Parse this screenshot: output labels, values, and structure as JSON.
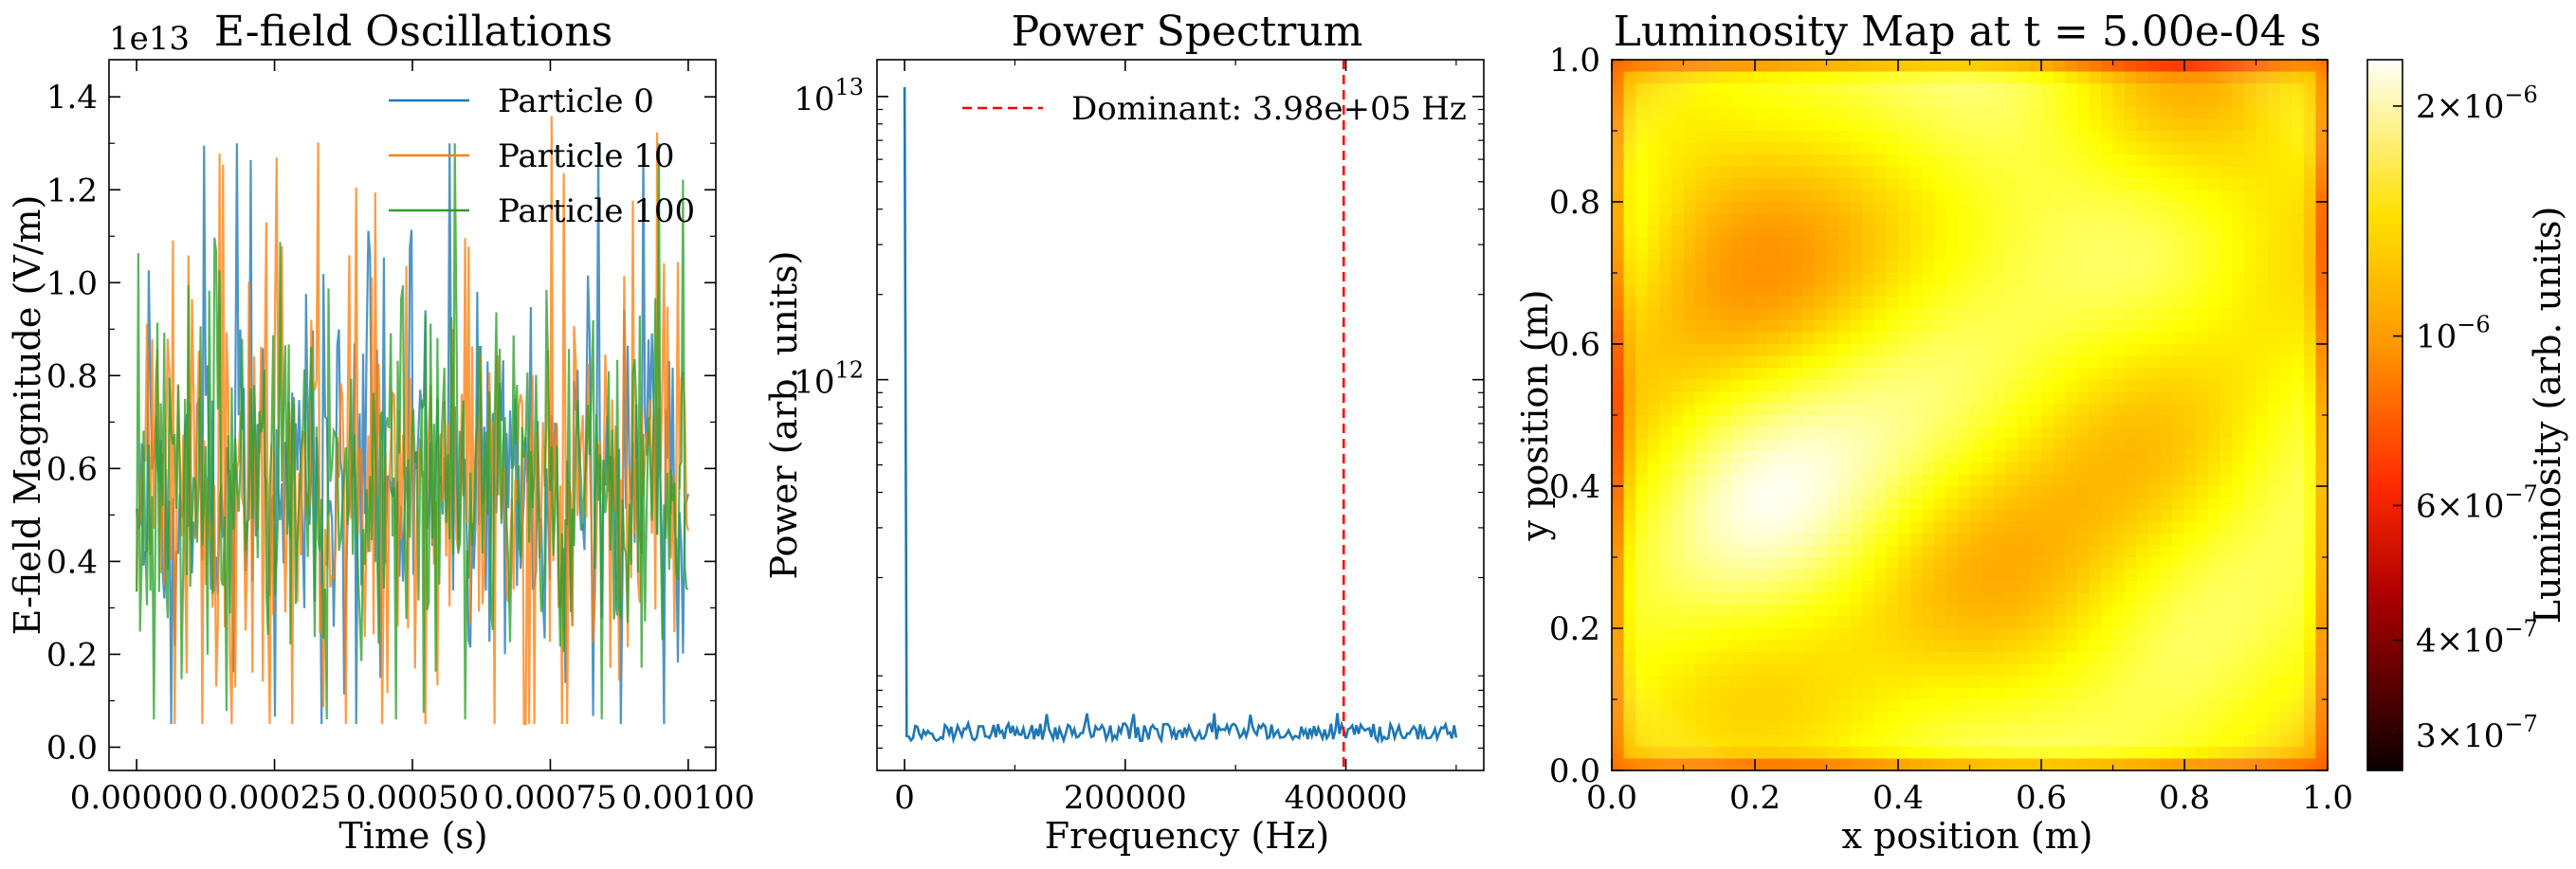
{
  "chart_data": [
    {
      "type": "line",
      "title": "E-field Oscillations",
      "xlabel": "Time (s)",
      "ylabel": "E-field Magnitude (V/m)",
      "offset_text": "1e13",
      "xlim": [
        -5e-05,
        0.00105
      ],
      "ylim": [
        -0.05,
        1.48
      ],
      "x_ticks": [
        "0.00000",
        "0.00025",
        "0.00050",
        "0.00075",
        "0.00100"
      ],
      "x_tick_values": [
        0,
        0.00025,
        0.0005,
        0.00075,
        0.001
      ],
      "y_ticks": [
        "0.0",
        "0.2",
        "0.4",
        "0.6",
        "0.8",
        "1.0",
        "1.2",
        "1.4"
      ],
      "y_tick_values": [
        0,
        0.2,
        0.4,
        0.6,
        0.8,
        1.0,
        1.2,
        1.4
      ],
      "x_range": [
        0,
        0.001
      ],
      "samples": 320,
      "legend_position": "top-right",
      "series": [
        {
          "name": "Particle 0",
          "color": "#1f77b4",
          "mean": 0.57,
          "spread": 0.24,
          "min": 0.05,
          "max": 1.3,
          "seed": 11
        },
        {
          "name": "Particle 10",
          "color": "#ff7f0e",
          "mean": 0.57,
          "spread": 0.25,
          "min": 0.05,
          "max": 1.4,
          "seed": 23
        },
        {
          "name": "Particle 100",
          "color": "#2ca02c",
          "mean": 0.56,
          "spread": 0.24,
          "min": 0.06,
          "max": 1.3,
          "seed": 37
        }
      ]
    },
    {
      "type": "line",
      "title": "Power Spectrum",
      "xlabel": "Frequency (Hz)",
      "ylabel": "Power (arb. units)",
      "y_scale": "log",
      "xlim": [
        -25000,
        525000
      ],
      "ylim_log10": [
        10.62,
        13.13
      ],
      "x_ticks": [
        "0",
        "200000",
        "400000"
      ],
      "x_tick_values": [
        0,
        200000,
        400000
      ],
      "y_tick_labels": [
        {
          "base": "10",
          "exp": "12",
          "value": 12
        },
        {
          "base": "10",
          "exp": "13",
          "value": 13
        }
      ],
      "series": [
        {
          "name": "",
          "color": "#1f77b4",
          "peak_x": 0,
          "peak_value": 10800000000000.0,
          "baseline_value": 57000000000.0,
          "x_max": 500000
        }
      ],
      "reference_line": {
        "x": 398000,
        "label": "Dominant: 3.98e+05 Hz",
        "color": "#ff0000"
      },
      "legend_position": "top-right"
    },
    {
      "type": "heatmap",
      "title": "Luminosity Map at t = 5.00e-04 s",
      "xlabel": "x position (m)",
      "ylabel": "y position (m)",
      "xlim": [
        0,
        1
      ],
      "ylim": [
        0,
        1
      ],
      "x_ticks": [
        "0.0",
        "0.2",
        "0.4",
        "0.6",
        "0.8",
        "1.0"
      ],
      "y_ticks": [
        "0.0",
        "0.2",
        "0.4",
        "0.6",
        "0.8",
        "1.0"
      ],
      "tick_values": [
        0,
        0.2,
        0.4,
        0.6,
        0.8,
        1.0
      ],
      "colormap": "hot",
      "colorbar": {
        "label": "Luminosity (arb. units)",
        "scale": "log",
        "vmin": 2.7e-07,
        "vmax": 2.3e-06,
        "ticks": [
          {
            "mantissa": "2",
            "base": "10",
            "exp": "−6",
            "value": 2e-06
          },
          {
            "mantissa": "",
            "base": "10",
            "exp": "−6",
            "value": 1e-06
          },
          {
            "mantissa": "6",
            "base": "10",
            "exp": "−7",
            "value": 6e-07
          },
          {
            "mantissa": "4",
            "base": "10",
            "exp": "−7",
            "value": 4e-07
          },
          {
            "mantissa": "3",
            "base": "10",
            "exp": "−7",
            "value": 3e-07
          }
        ]
      }
    }
  ]
}
